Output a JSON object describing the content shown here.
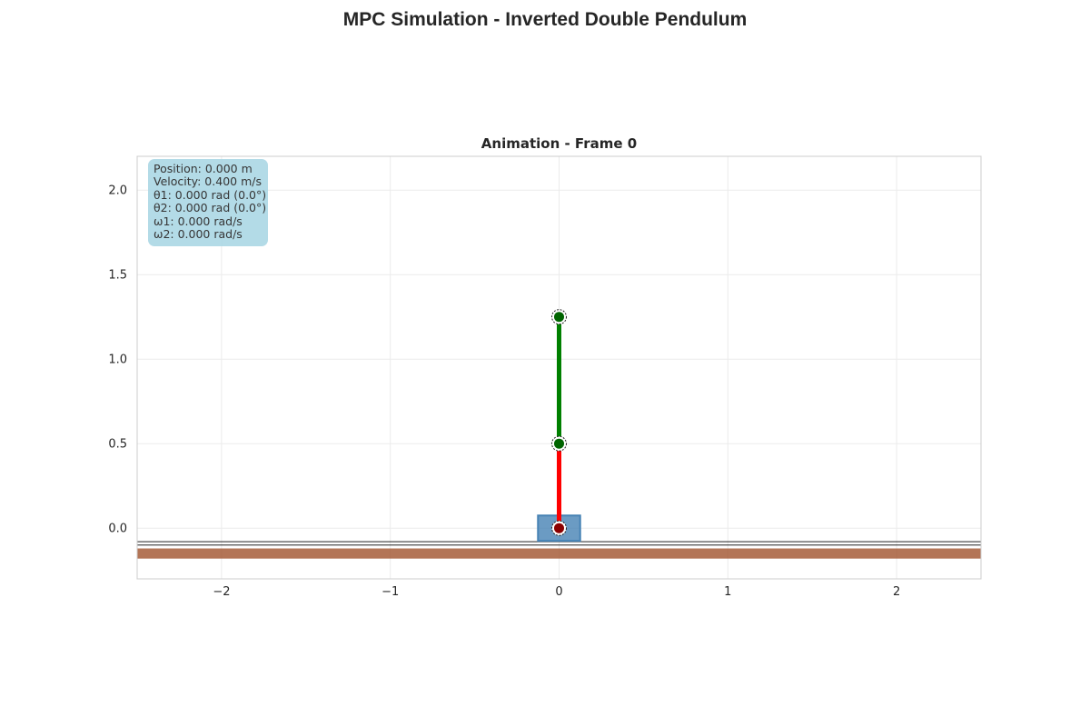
{
  "figure_title": "MPC Simulation - Inverted Double Pendulum",
  "info_box": {
    "lines": [
      "Position: 0.000 m",
      "Velocity: 0.400 m/s",
      "θ1: 0.000 rad (0.0°)",
      "θ2: 0.000 rad (0.0°)",
      "ω1: 0.000 rad/s",
      "ω2: 0.000 rad/s"
    ]
  },
  "colors": {
    "cart": "#4682b4",
    "link1": "#ff0000",
    "link2": "#008000",
    "pivot": "#8b0000",
    "joint": "#006400",
    "ground": "#a0522d",
    "info_box": "#add8e6"
  },
  "chart_data": {
    "type": "scatter",
    "title": "Animation - Frame 0",
    "xlabel": "",
    "ylabel": "",
    "xlim": [
      -2.5,
      2.5
    ],
    "ylim": [
      -0.3,
      2.2
    ],
    "x_ticks": [
      -2,
      -1,
      0,
      1,
      2
    ],
    "x_tick_labels": [
      "−2",
      "−1",
      "0",
      "1",
      "2"
    ],
    "y_ticks": [
      0.0,
      0.5,
      1.0,
      1.5,
      2.0
    ],
    "y_tick_labels": [
      "0.0",
      "0.5",
      "1.0",
      "1.5",
      "2.0"
    ],
    "grid": true,
    "cart": {
      "x_center": 0.0,
      "y_center": 0.0,
      "width": 0.25,
      "height": 0.15
    },
    "rail_lines_y": [
      -0.08,
      -0.1
    ],
    "ground": {
      "y_top": -0.12,
      "y_bottom": -0.18
    },
    "links": [
      {
        "name": "link1",
        "from": [
          0.0,
          0.0
        ],
        "to": [
          0.0,
          0.5
        ]
      },
      {
        "name": "link2",
        "from": [
          0.0,
          0.5
        ],
        "to": [
          0.0,
          1.25
        ]
      }
    ],
    "points": [
      {
        "name": "pivot",
        "x": 0.0,
        "y": 0.0
      },
      {
        "name": "joint1",
        "x": 0.0,
        "y": 0.5
      },
      {
        "name": "joint2",
        "x": 0.0,
        "y": 1.25
      }
    ]
  }
}
